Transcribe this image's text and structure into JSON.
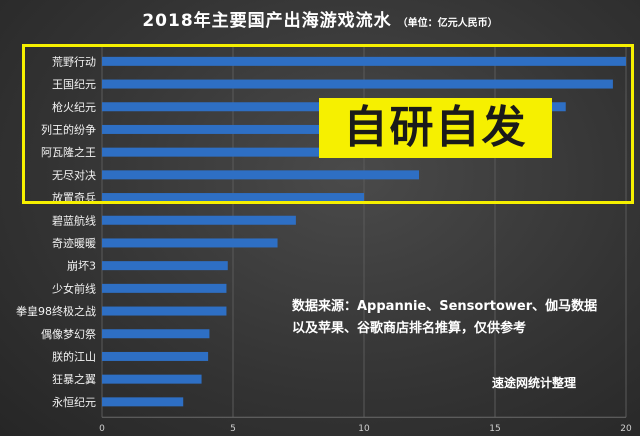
{
  "title": "2018年主要国产出海游戏流水",
  "unit": "（单位：亿元人民币）",
  "highlight_label": "自研自发",
  "source_line1": "数据来源：Appannie、Sensortower、伽马数据",
  "source_line2": "以及苹果、谷歌商店排名推算，仅供参考",
  "credit": "速途网统计整理",
  "colors": {
    "bar": "#2e6fc4",
    "highlight": "#f6f000",
    "background": "#333333"
  },
  "chart_data": {
    "type": "bar",
    "orientation": "horizontal",
    "categories": [
      "荒野行动",
      "王国纪元",
      "枪火纪元",
      "列王的纷争",
      "阿瓦隆之王",
      "无尽对决",
      "放置奇兵",
      "碧蓝航线",
      "奇迹暖暖",
      "崩坏3",
      "少女前线",
      "拳皇98终极之战",
      "偶像梦幻祭",
      "朕的江山",
      "狂暴之翼",
      "永恒纪元"
    ],
    "values": [
      20,
      19.5,
      17.7,
      15.3,
      14.3,
      12.1,
      10.0,
      7.4,
      6.7,
      4.8,
      4.75,
      4.75,
      4.1,
      4.05,
      3.8,
      3.1
    ],
    "xticks": [
      "0",
      "5",
      "10",
      "15",
      "20"
    ],
    "xlim": [
      0,
      20
    ],
    "grid": true,
    "highlighted_categories": [
      "荒野行动",
      "王国纪元",
      "枪火纪元",
      "列王的纷争",
      "阿瓦隆之王",
      "无尽对决",
      "放置奇兵"
    ]
  }
}
